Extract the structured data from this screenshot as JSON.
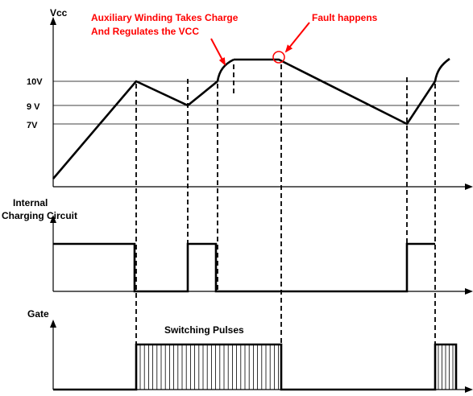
{
  "labels": {
    "vcc": "Vcc",
    "charging_line1": "Internal",
    "charging_line2": "Charging Circuit",
    "gate": "Gate",
    "switching_pulses": "Switching Pulses"
  },
  "levels": {
    "v10": "10V",
    "v9": "9 V",
    "v7": "7V"
  },
  "annotations": {
    "aux_line1": "Auxiliary Winding Takes Charge",
    "aux_line2": "And Regulates the VCC",
    "fault": "Fault happens"
  },
  "colors": {
    "annotation": "#ff0000",
    "line": "#000000"
  }
}
